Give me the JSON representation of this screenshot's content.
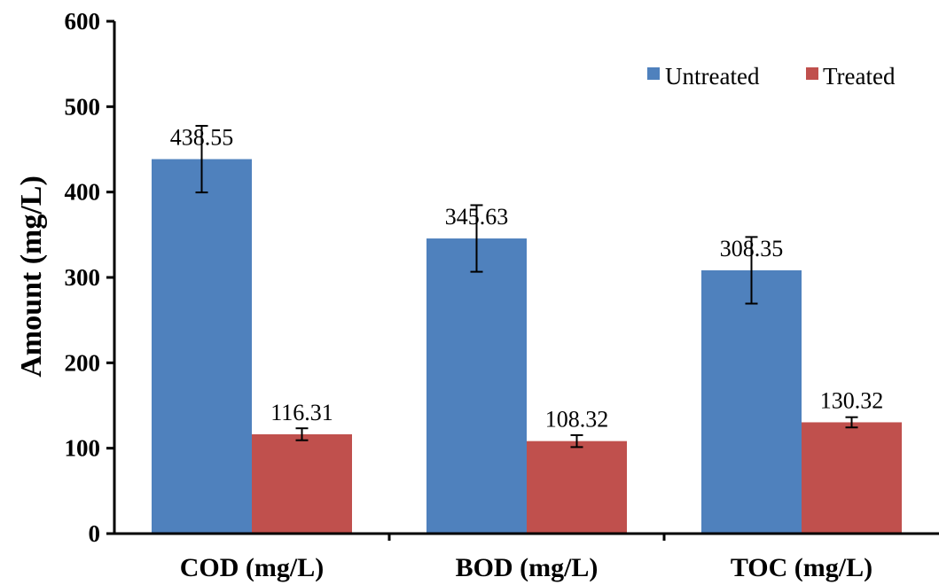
{
  "chart_data": {
    "type": "bar",
    "categories": [
      "COD (mg/L)",
      "BOD (mg/L)",
      "TOC (mg/L)"
    ],
    "series": [
      {
        "name": "Untreated",
        "values": [
          438.55,
          345.63,
          308.35
        ],
        "errors": [
          39,
          39,
          39
        ],
        "color": "#4F81BD"
      },
      {
        "name": "Treated",
        "values": [
          116.31,
          108.32,
          130.32
        ],
        "errors": [
          7,
          7,
          6
        ],
        "color": "#C0504D"
      }
    ],
    "data_labels": [
      [
        "438.55",
        "345.63",
        "308.35"
      ],
      [
        "116.31",
        "108.32",
        "130.32"
      ]
    ],
    "ylabel": "Amount (mg/L)",
    "xlabel": "",
    "ylim": [
      0,
      600
    ],
    "yticks": [
      0,
      100,
      200,
      300,
      400,
      500,
      600
    ],
    "grid": false,
    "legend_position": "top-right"
  }
}
